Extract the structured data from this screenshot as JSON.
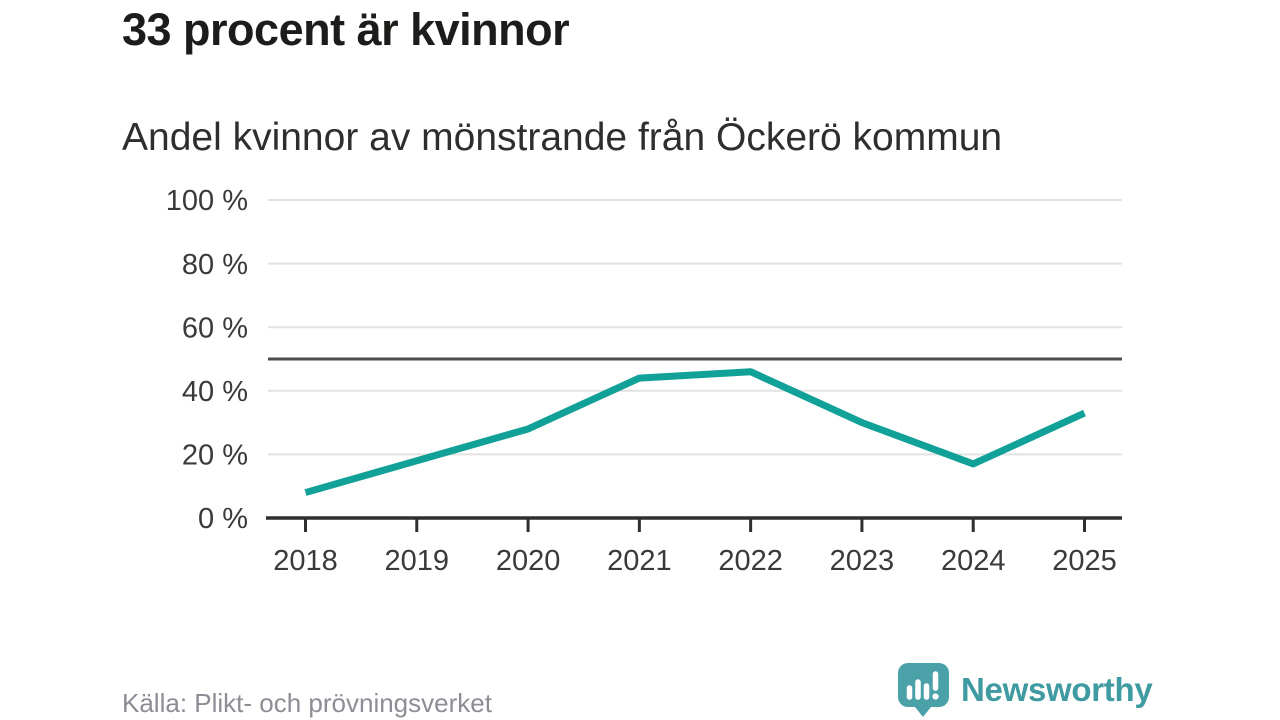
{
  "header": {
    "title": "33 procent är kvinnor",
    "subtitle": "Andel kvinnor av mönstrande från Öckerö kommun"
  },
  "chart_data": {
    "type": "line",
    "title": "33 procent är kvinnor",
    "subtitle": "Andel kvinnor av mönstrande från Öckerö kommun",
    "categories": [
      "2018",
      "2019",
      "2020",
      "2021",
      "2022",
      "2023",
      "2024",
      "2025"
    ],
    "series": [
      {
        "name": "Andel kvinnor av mönstrande",
        "values": [
          8,
          18,
          28,
          44,
          46,
          30,
          17,
          33
        ]
      }
    ],
    "unit": "%",
    "xlabel": "",
    "ylabel": "",
    "ylim": [
      0,
      100
    ],
    "yticks": [
      0,
      20,
      40,
      60,
      80,
      100
    ],
    "ytick_suffix": " %",
    "reference_line_y": 50,
    "grid": "horizontal",
    "legend": "none",
    "colors": {
      "line": "#12a198",
      "reference_line": "#4d4d4d",
      "gridline": "#e2e2e2",
      "axis": "#2f2f2f",
      "tick_label": "#3a3a3a"
    }
  },
  "footer": {
    "source": "Källa: Plikt- och prövningsverket",
    "brand": "Newsworthy",
    "brand_color": "#3f9aa1",
    "brand_icon": "speech-bubble-bar-chart-icon"
  }
}
